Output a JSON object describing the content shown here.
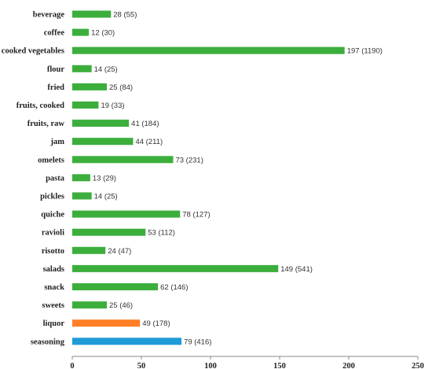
{
  "colors": {
    "green": "#3cae3c",
    "orange": "#ff7f27",
    "blue": "#1f9bd7"
  },
  "chart_data": {
    "type": "bar",
    "orientation": "horizontal",
    "categories": [
      "beverage",
      "coffee",
      "cooked vegetables",
      "flour",
      "fried",
      "fruits, cooked",
      "fruits, raw",
      "jam",
      "omelets",
      "pasta",
      "pickles",
      "quiche",
      "ravioli",
      "risotto",
      "salads",
      "snack",
      "sweets",
      "liquor",
      "seasoning"
    ],
    "values": [
      28,
      12,
      197,
      14,
      25,
      19,
      41,
      44,
      73,
      13,
      14,
      78,
      53,
      24,
      149,
      62,
      25,
      49,
      79
    ],
    "data_labels": [
      "28 (55)",
      "12 (30)",
      "197 (1190)",
      "14 (25)",
      "25 (84)",
      "19 (33)",
      "41 (184)",
      "44 (211)",
      "73 (231)",
      "13 (29)",
      "14 (25)",
      "78 (127)",
      "53 (112)",
      "24 (47)",
      "149 (541)",
      "62 (146)",
      "25 (46)",
      "49 (178)",
      "79 (416)"
    ],
    "bar_colors": [
      "#3cae3c",
      "#3cae3c",
      "#3cae3c",
      "#3cae3c",
      "#3cae3c",
      "#3cae3c",
      "#3cae3c",
      "#3cae3c",
      "#3cae3c",
      "#3cae3c",
      "#3cae3c",
      "#3cae3c",
      "#3cae3c",
      "#3cae3c",
      "#3cae3c",
      "#3cae3c",
      "#3cae3c",
      "#ff7f27",
      "#1f9bd7"
    ],
    "xlim": [
      0,
      250
    ],
    "xticks": [
      "0",
      "50",
      "100",
      "150",
      "200",
      "250"
    ],
    "grid": false,
    "legend": "none",
    "title": "",
    "xlabel": "",
    "ylabel": ""
  }
}
